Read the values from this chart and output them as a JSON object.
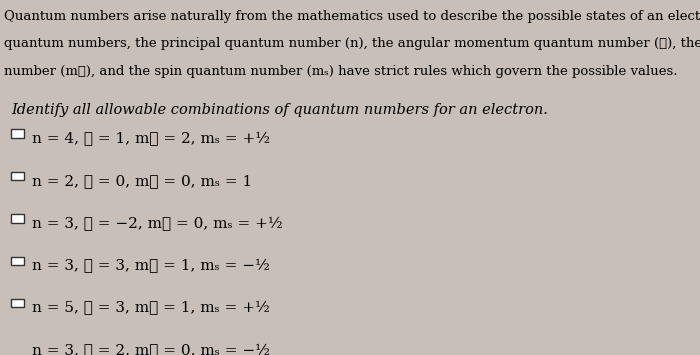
{
  "background_color": "#c8c0b8",
  "header_text": "Quantum numbers arise naturally from the mathematics used to describe the possible states of an electron in an atom. The four\nquantum numbers, the principal quantum number (n), the angular momentum quantum number (ℓ), the magnetic quantum\nnumber (mℓ), and the spin quantum number (mₛ) have strict rules which govern the possible values.",
  "question_text": "Identify all allowable combinations of quantum numbers for an electron.",
  "options": [
    "n = 4, ℓ = 1, mℓ = 2, mₛ = +½",
    "n = 2, ℓ = 0, mℓ = 0, mₛ = 1",
    "n = 3, ℓ = −2, mℓ = 0, mₛ = +½",
    "n = 3, ℓ = 3, mℓ = 1, mₛ = −½",
    "n = 5, ℓ = 3, mℓ = 1, mₛ = +½",
    "n = 3, ℓ = 2, mℓ = 0, mₛ = −½"
  ],
  "text_color": "#000000",
  "checkbox_color": "#ffffff",
  "checkbox_edge_color": "#333333",
  "font_size_header": 9.5,
  "font_size_question": 10.5,
  "font_size_options": 11
}
